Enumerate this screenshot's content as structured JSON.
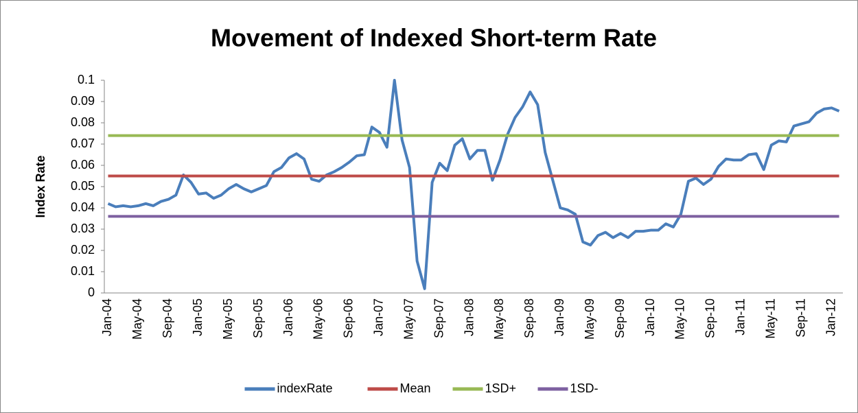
{
  "chart_data": {
    "type": "line",
    "title": "Movement of Indexed Short-term Rate",
    "y_label": "Index Rate",
    "categories": [
      "Jan-04",
      null,
      null,
      null,
      "May-04",
      null,
      null,
      null,
      "Sep-04",
      null,
      null,
      null,
      "Jan-05",
      null,
      null,
      null,
      "May-05",
      null,
      null,
      null,
      "Sep-05",
      null,
      null,
      null,
      "Jan-06",
      null,
      null,
      null,
      "May-06",
      null,
      null,
      null,
      "Sep-06",
      null,
      null,
      null,
      "Jan-07",
      null,
      null,
      null,
      "May-07",
      null,
      null,
      null,
      "Sep-07",
      null,
      null,
      null,
      "Jan-08",
      null,
      null,
      null,
      "May-08",
      null,
      null,
      null,
      "Sep-08",
      null,
      null,
      null,
      "Jan-09",
      null,
      null,
      null,
      "May-09",
      null,
      null,
      null,
      "Sep-09",
      null,
      null,
      null,
      "Jan-10",
      null,
      null,
      null,
      "May-10",
      null,
      null,
      null,
      "Sep-10",
      null,
      null,
      null,
      "Jan-11",
      null,
      null,
      null,
      "May-11",
      null,
      null,
      null,
      "Sep-11",
      null,
      null,
      null,
      "Jan-12",
      null
    ],
    "series": [
      {
        "name": "indexRate",
        "color": "#4a7ebb",
        "values": [
          0.042,
          0.0405,
          0.041,
          0.0405,
          0.041,
          0.042,
          0.041,
          0.043,
          0.044,
          0.046,
          0.0555,
          0.052,
          0.0465,
          0.047,
          0.0445,
          0.046,
          0.049,
          0.051,
          0.049,
          0.0475,
          0.049,
          0.0505,
          0.057,
          0.059,
          0.0635,
          0.0655,
          0.063,
          0.0535,
          0.0525,
          0.0555,
          0.057,
          0.059,
          0.0615,
          0.0645,
          0.065,
          0.078,
          0.0755,
          0.0685,
          0.1,
          0.072,
          0.059,
          0.015,
          0.002,
          0.052,
          0.061,
          0.0575,
          0.0695,
          0.0725,
          0.063,
          0.067,
          0.067,
          0.053,
          0.0625,
          0.0745,
          0.0825,
          0.0875,
          0.0945,
          0.0885,
          0.066,
          0.053,
          0.04,
          0.039,
          0.037,
          0.024,
          0.0225,
          0.027,
          0.0285,
          0.026,
          0.028,
          0.026,
          0.029,
          0.029,
          0.0295,
          0.0295,
          0.0325,
          0.031,
          0.037,
          0.0525,
          0.054,
          0.051,
          0.0535,
          0.0595,
          0.063,
          0.0625,
          0.0625,
          0.065,
          0.0655,
          0.058,
          0.0695,
          0.0715,
          0.071,
          0.0785,
          0.0795,
          0.0805,
          0.0845,
          0.0865,
          0.087,
          0.0855
        ]
      },
      {
        "name": "Mean",
        "color": "#be4b48",
        "values": [
          0.055,
          0.055,
          0.055,
          0.055,
          0.055,
          0.055,
          0.055,
          0.055,
          0.055,
          0.055,
          0.055,
          0.055,
          0.055,
          0.055,
          0.055,
          0.055,
          0.055,
          0.055,
          0.055,
          0.055,
          0.055,
          0.055,
          0.055,
          0.055,
          0.055,
          0.055,
          0.055,
          0.055,
          0.055,
          0.055,
          0.055,
          0.055,
          0.055,
          0.055,
          0.055,
          0.055,
          0.055,
          0.055,
          0.055,
          0.055,
          0.055,
          0.055,
          0.055,
          0.055,
          0.055,
          0.055,
          0.055,
          0.055,
          0.055,
          0.055,
          0.055,
          0.055,
          0.055,
          0.055,
          0.055,
          0.055,
          0.055,
          0.055,
          0.055,
          0.055,
          0.055,
          0.055,
          0.055,
          0.055,
          0.055,
          0.055,
          0.055,
          0.055,
          0.055,
          0.055,
          0.055,
          0.055,
          0.055,
          0.055,
          0.055,
          0.055,
          0.055,
          0.055,
          0.055,
          0.055,
          0.055,
          0.055,
          0.055,
          0.055,
          0.055,
          0.055,
          0.055,
          0.055,
          0.055,
          0.055,
          0.055,
          0.055,
          0.055,
          0.055,
          0.055,
          0.055,
          0.055,
          0.055
        ]
      },
      {
        "name": "1SD+",
        "color": "#98b954",
        "values": [
          0.074,
          0.074,
          0.074,
          0.074,
          0.074,
          0.074,
          0.074,
          0.074,
          0.074,
          0.074,
          0.074,
          0.074,
          0.074,
          0.074,
          0.074,
          0.074,
          0.074,
          0.074,
          0.074,
          0.074,
          0.074,
          0.074,
          0.074,
          0.074,
          0.074,
          0.074,
          0.074,
          0.074,
          0.074,
          0.074,
          0.074,
          0.074,
          0.074,
          0.074,
          0.074,
          0.074,
          0.074,
          0.074,
          0.074,
          0.074,
          0.074,
          0.074,
          0.074,
          0.074,
          0.074,
          0.074,
          0.074,
          0.074,
          0.074,
          0.074,
          0.074,
          0.074,
          0.074,
          0.074,
          0.074,
          0.074,
          0.074,
          0.074,
          0.074,
          0.074,
          0.074,
          0.074,
          0.074,
          0.074,
          0.074,
          0.074,
          0.074,
          0.074,
          0.074,
          0.074,
          0.074,
          0.074,
          0.074,
          0.074,
          0.074,
          0.074,
          0.074,
          0.074,
          0.074,
          0.074,
          0.074,
          0.074,
          0.074,
          0.074,
          0.074,
          0.074,
          0.074,
          0.074,
          0.074,
          0.074,
          0.074,
          0.074,
          0.074,
          0.074,
          0.074,
          0.074,
          0.074,
          0.074
        ]
      },
      {
        "name": "1SD-",
        "color": "#7d60a0",
        "values": [
          0.036,
          0.036,
          0.036,
          0.036,
          0.036,
          0.036,
          0.036,
          0.036,
          0.036,
          0.036,
          0.036,
          0.036,
          0.036,
          0.036,
          0.036,
          0.036,
          0.036,
          0.036,
          0.036,
          0.036,
          0.036,
          0.036,
          0.036,
          0.036,
          0.036,
          0.036,
          0.036,
          0.036,
          0.036,
          0.036,
          0.036,
          0.036,
          0.036,
          0.036,
          0.036,
          0.036,
          0.036,
          0.036,
          0.036,
          0.036,
          0.036,
          0.036,
          0.036,
          0.036,
          0.036,
          0.036,
          0.036,
          0.036,
          0.036,
          0.036,
          0.036,
          0.036,
          0.036,
          0.036,
          0.036,
          0.036,
          0.036,
          0.036,
          0.036,
          0.036,
          0.036,
          0.036,
          0.036,
          0.036,
          0.036,
          0.036,
          0.036,
          0.036,
          0.036,
          0.036,
          0.036,
          0.036,
          0.036,
          0.036,
          0.036,
          0.036,
          0.036,
          0.036,
          0.036,
          0.036,
          0.036,
          0.036,
          0.036,
          0.036,
          0.036,
          0.036,
          0.036,
          0.036,
          0.036,
          0.036,
          0.036,
          0.036,
          0.036,
          0.036,
          0.036,
          0.036,
          0.036,
          0.036
        ]
      }
    ],
    "ylim": [
      0,
      0.1
    ],
    "yticks": [
      0,
      0.01,
      0.02,
      0.03,
      0.04,
      0.05,
      0.06,
      0.07,
      0.08,
      0.09,
      0.1
    ],
    "legend": "bottom"
  }
}
